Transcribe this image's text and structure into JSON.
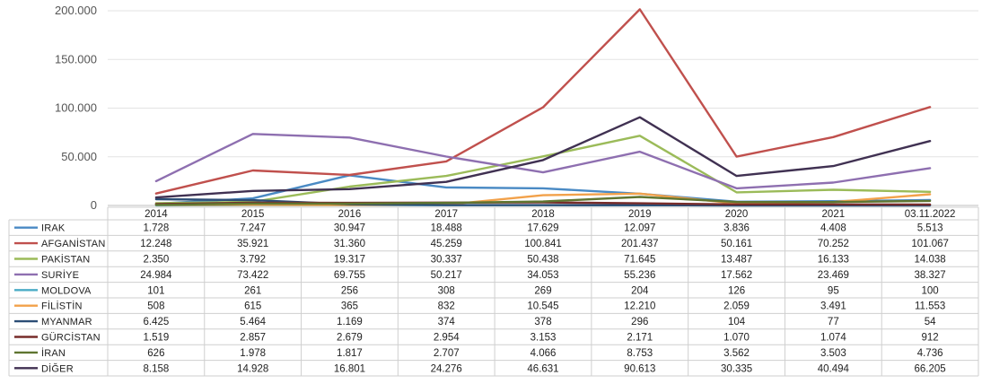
{
  "chart_data": {
    "type": "line",
    "categories": [
      "2014",
      "2015",
      "2016",
      "2017",
      "2018",
      "2019",
      "2020",
      "2021",
      "03.11.2022"
    ],
    "ylim": [
      0,
      200000
    ],
    "yticks": [
      {
        "value": 0,
        "label": "0"
      },
      {
        "value": 50000,
        "label": "50.000"
      },
      {
        "value": 100000,
        "label": "100.000"
      },
      {
        "value": 150000,
        "label": "150.000"
      },
      {
        "value": 200000,
        "label": "200.000"
      }
    ],
    "grid": true,
    "legend_placement": "data-table-left",
    "series": [
      {
        "name": "IRAK",
        "color": "#4a8ac4",
        "values": [
          1728,
          7247,
          30947,
          18488,
          17629,
          12097,
          3836,
          4408,
          5513
        ],
        "labels": [
          "1.728",
          "7.247",
          "30.947",
          "18.488",
          "17.629",
          "12.097",
          "3.836",
          "4.408",
          "5.513"
        ]
      },
      {
        "name": "AFGANİSTAN",
        "color": "#c0504d",
        "values": [
          12248,
          35921,
          31360,
          45259,
          100841,
          201437,
          50161,
          70252,
          101067
        ],
        "labels": [
          "12.248",
          "35.921",
          "31.360",
          "45.259",
          "100.841",
          "201.437",
          "50.161",
          "70.252",
          "101.067"
        ]
      },
      {
        "name": "PAKİSTAN",
        "color": "#9bbb59",
        "values": [
          2350,
          3792,
          19317,
          30337,
          50438,
          71645,
          13487,
          16133,
          14038
        ],
        "labels": [
          "2.350",
          "3.792",
          "19.317",
          "30.337",
          "50.438",
          "71.645",
          "13.487",
          "16.133",
          "14.038"
        ]
      },
      {
        "name": "SURİYE",
        "color": "#8e6fb0",
        "values": [
          24984,
          73422,
          69755,
          50217,
          34053,
          55236,
          17562,
          23469,
          38327
        ],
        "labels": [
          "24.984",
          "73.422",
          "69.755",
          "50.217",
          "34.053",
          "55.236",
          "17.562",
          "23.469",
          "38.327"
        ]
      },
      {
        "name": "MOLDOVA",
        "color": "#4bacc6",
        "values": [
          101,
          261,
          256,
          308,
          269,
          204,
          126,
          95,
          100
        ],
        "labels": [
          "101",
          "261",
          "256",
          "308",
          "269",
          "204",
          "126",
          "95",
          "100"
        ]
      },
      {
        "name": "FİLİSTİN",
        "color": "#f2a14a",
        "values": [
          508,
          615,
          365,
          832,
          10545,
          12210,
          2059,
          3491,
          11553
        ],
        "labels": [
          "508",
          "615",
          "365",
          "832",
          "10.545",
          "12.210",
          "2.059",
          "3.491",
          "11.553"
        ]
      },
      {
        "name": "MYANMAR",
        "color": "#2c4d75",
        "values": [
          6425,
          5464,
          1169,
          374,
          378,
          296,
          104,
          77,
          54
        ],
        "labels": [
          "6.425",
          "5.464",
          "1.169",
          "374",
          "378",
          "296",
          "104",
          "77",
          "54"
        ]
      },
      {
        "name": "GÜRCİSTAN",
        "color": "#772c2a",
        "values": [
          1519,
          2857,
          2679,
          2954,
          3153,
          2171,
          1070,
          1074,
          912
        ],
        "labels": [
          "1.519",
          "2.857",
          "2.679",
          "2.954",
          "3.153",
          "2.171",
          "1.070",
          "1.074",
          "912"
        ]
      },
      {
        "name": "İRAN",
        "color": "#5f7530",
        "values": [
          626,
          1978,
          1817,
          2707,
          4066,
          8753,
          3562,
          3503,
          4736
        ],
        "labels": [
          "626",
          "1.978",
          "1.817",
          "2.707",
          "4.066",
          "8.753",
          "3.562",
          "3.503",
          "4.736"
        ]
      },
      {
        "name": "DİĞER",
        "color": "#403152",
        "values": [
          8158,
          14928,
          16801,
          24276,
          46631,
          90613,
          30335,
          40494,
          66205
        ],
        "labels": [
          "8.158",
          "14.928",
          "16.801",
          "24.276",
          "46.631",
          "90.613",
          "30.335",
          "40.494",
          "66.205"
        ]
      }
    ]
  }
}
